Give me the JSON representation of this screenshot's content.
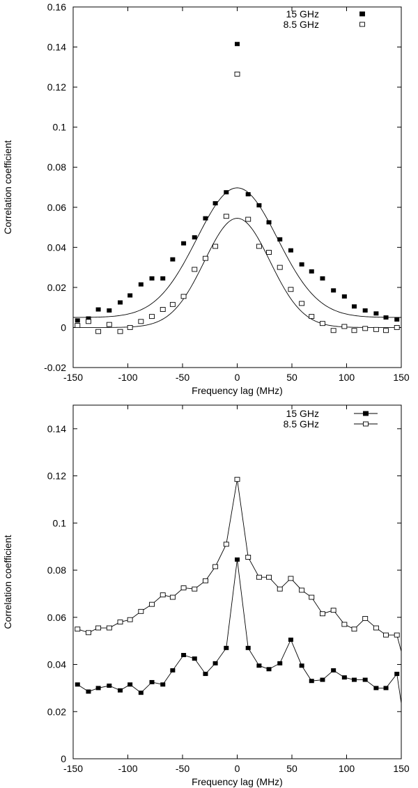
{
  "chart_data": [
    {
      "type": "scatter",
      "title": "",
      "xlabel": "Frequency lag (MHz)",
      "ylabel": "Correlation coefficient",
      "xlim": [
        -150,
        150
      ],
      "ylim": [
        -0.02,
        0.16
      ],
      "xticks": [
        -150,
        -100,
        -50,
        0,
        50,
        100,
        150
      ],
      "yticks": [
        -0.02,
        0,
        0.02,
        0.04,
        0.06,
        0.08,
        0.1,
        0.12,
        0.14,
        0.16
      ],
      "xtick_labels": [
        "-150",
        "-100",
        "-50",
        "0",
        "50",
        "100",
        "150"
      ],
      "ytick_labels": [
        "-0.02",
        "0",
        "0.02",
        "0.04",
        "0.06",
        "0.08",
        "0.1",
        "0.12",
        "0.14",
        "0.16"
      ],
      "legend_position": "top-right",
      "x": [
        -146,
        -136,
        -127,
        -117,
        -107,
        -98,
        -88,
        -78,
        -68,
        -59,
        -49,
        -39,
        -29,
        -20,
        -10,
        0,
        10,
        20,
        29,
        39,
        49,
        59,
        68,
        78,
        88,
        98,
        107,
        117,
        127,
        136,
        146
      ],
      "series": [
        {
          "name": "15 GHz",
          "marker": "filled-square",
          "values": [
            0.0035,
            0.0045,
            0.009,
            0.0085,
            0.0125,
            0.016,
            0.0215,
            0.0245,
            0.0245,
            0.034,
            0.042,
            0.045,
            0.0545,
            0.062,
            0.0675,
            0.1415,
            0.0665,
            0.061,
            0.0525,
            0.044,
            0.0385,
            0.0315,
            0.028,
            0.0245,
            0.0185,
            0.0155,
            0.0105,
            0.0085,
            0.007,
            0.005,
            0.004
          ]
        },
        {
          "name": "8.5 GHz",
          "marker": "open-square",
          "values": [
            0.001,
            0.003,
            -0.002,
            0.0015,
            -0.002,
            0.0,
            0.003,
            0.0055,
            0.009,
            0.0115,
            0.0155,
            0.029,
            0.0345,
            0.0405,
            0.0555,
            0.1265,
            0.054,
            0.0405,
            0.0375,
            0.03,
            0.019,
            0.012,
            0.0055,
            0.002,
            -0.0015,
            0.0005,
            -0.0015,
            -0.0005,
            -0.001,
            -0.0015,
            0.0
          ]
        }
      ],
      "fits": [
        {
          "series": "15 GHz",
          "shape": "gaussian",
          "amplitude": 0.0647,
          "offset": 0.005,
          "sigma": 37
        },
        {
          "series": "8.5 GHz",
          "shape": "gaussian",
          "amplitude": 0.0545,
          "offset": 0.0,
          "sigma": 30
        }
      ]
    },
    {
      "type": "line",
      "title": "",
      "xlabel": "Frequency lag (MHz)",
      "ylabel": "Correlation coefficient",
      "xlim": [
        -150,
        150
      ],
      "ylim": [
        0,
        0.15
      ],
      "xticks": [
        -150,
        -100,
        -50,
        0,
        50,
        100,
        150
      ],
      "yticks": [
        0,
        0.02,
        0.04,
        0.06,
        0.08,
        0.1,
        0.12,
        0.14
      ],
      "xtick_labels": [
        "-150",
        "-100",
        "-50",
        "0",
        "50",
        "100",
        "150"
      ],
      "ytick_labels": [
        "0",
        "0.02",
        "0.04",
        "0.06",
        "0.08",
        "0.1",
        "0.12",
        "0.14"
      ],
      "legend_position": "top-right",
      "x": [
        -146,
        -136,
        -127,
        -117,
        -107,
        -98,
        -88,
        -78,
        -68,
        -59,
        -49,
        -39,
        -29,
        -20,
        -10,
        0,
        10,
        20,
        29,
        39,
        49,
        59,
        68,
        78,
        88,
        98,
        107,
        117,
        127,
        136,
        146
      ],
      "series": [
        {
          "name": "15 GHz",
          "marker": "filled-square",
          "values": [
            0.0315,
            0.0285,
            0.03,
            0.031,
            0.029,
            0.0315,
            0.028,
            0.0325,
            0.0315,
            0.0375,
            0.044,
            0.0425,
            0.036,
            0.0405,
            0.047,
            0.0845,
            0.047,
            0.0395,
            0.038,
            0.0405,
            0.0505,
            0.0395,
            0.033,
            0.0335,
            0.0375,
            0.0345,
            0.0335,
            0.0335,
            0.03,
            0.03,
            0.036
          ],
          "end_x": 150,
          "end_value": 0.0235
        },
        {
          "name": "8.5 GHz",
          "marker": "open-square",
          "values": [
            0.055,
            0.0535,
            0.0555,
            0.0555,
            0.058,
            0.059,
            0.0625,
            0.0655,
            0.0695,
            0.0685,
            0.0725,
            0.072,
            0.0755,
            0.0815,
            0.091,
            0.1185,
            0.0855,
            0.077,
            0.077,
            0.072,
            0.0765,
            0.0715,
            0.0685,
            0.0615,
            0.063,
            0.057,
            0.055,
            0.0595,
            0.0555,
            0.0525,
            0.0525
          ],
          "end_x": 150,
          "end_value": 0.0455
        }
      ]
    }
  ]
}
